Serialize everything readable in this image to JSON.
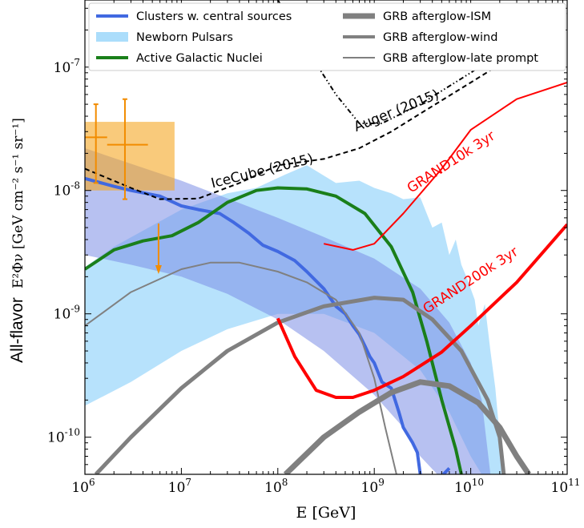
{
  "chart_data": {
    "type": "line",
    "log_x": true,
    "log_y": true,
    "xlim": [
      1000000.0,
      100000000000.0
    ],
    "ylim": [
      5e-11,
      3.5e-07
    ],
    "xlabel": "E [GeV]",
    "ylabel_prefix": "All-flavor",
    "ylabel_math": "E²Φν [GeV cm⁻² s⁻¹ sr⁻¹]",
    "x_ticks": [
      {
        "value": 1000000.0,
        "base": "10",
        "exp": "6"
      },
      {
        "value": 10000000.0,
        "base": "10",
        "exp": "7"
      },
      {
        "value": 100000000.0,
        "base": "10",
        "exp": "8"
      },
      {
        "value": 1000000000.0,
        "base": "10",
        "exp": "9"
      },
      {
        "value": 10000000000.0,
        "base": "10",
        "exp": "10"
      },
      {
        "value": 100000000000.0,
        "base": "10",
        "exp": "11"
      }
    ],
    "y_ticks": [
      {
        "value": 1e-10,
        "base": "10",
        "exp": "-10"
      },
      {
        "value": 1e-09,
        "base": "10",
        "exp": "-9"
      },
      {
        "value": 1e-08,
        "base": "10",
        "exp": "-8"
      },
      {
        "value": 1e-07,
        "base": "10",
        "exp": "-7"
      }
    ],
    "legend": {
      "placement": "top",
      "entries": [
        {
          "label": "Clusters w. central sources",
          "color": "#4169e1",
          "style": "line-thick"
        },
        {
          "label": "Newborn Pulsars",
          "color": "#87cefa",
          "style": "band"
        },
        {
          "label": "Active Galactic Nuclei",
          "color": "#1a7f1a",
          "style": "line-thick"
        },
        {
          "label": "GRB afterglow-ISM",
          "color": "#808080",
          "style": "line-xthick"
        },
        {
          "label": "GRB afterglow-wind",
          "color": "#808080",
          "style": "line-thick"
        },
        {
          "label": "GRB afterglow-late prompt",
          "color": "#808080",
          "style": "line-thin"
        }
      ]
    },
    "bands": [
      {
        "name": "Newborn Pulsars",
        "color": "#87cefa",
        "opacity": 0.6,
        "upper": [
          [
            1000000.0,
            2.4e-09
          ],
          [
            2000000.0,
            3.5e-09
          ],
          [
            5000000.0,
            5.2e-09
          ],
          [
            10000000.0,
            7e-09
          ],
          [
            30000000.0,
            9.5e-09
          ],
          [
            60000000.0,
            1.05e-08
          ],
          [
            120000000.0,
            1.35e-08
          ],
          [
            200000000.0,
            1.6e-08
          ],
          [
            400000000.0,
            1.15e-08
          ],
          [
            700000000.0,
            1.2e-08
          ],
          [
            1000000000.0,
            1.05e-08
          ],
          [
            1500000000.0,
            9.5e-09
          ],
          [
            2000000000.0,
            8.5e-09
          ],
          [
            3000000000.0,
            8.8e-09
          ],
          [
            4000000000.0,
            5e-09
          ],
          [
            5000000000.0,
            5.5e-09
          ],
          [
            6000000000.0,
            3e-09
          ],
          [
            7000000000.0,
            4e-09
          ],
          [
            8000000000.0,
            2.5e-09
          ],
          [
            9000000000.0,
            2e-09
          ],
          [
            11000000000.0,
            1.3e-09
          ],
          [
            12000000000.0,
            8e-10
          ],
          [
            14000000000.0,
            1.2e-09
          ],
          [
            16000000000.0,
            5e-10
          ],
          [
            18000000000.0,
            2.5e-10
          ],
          [
            20000000000.0,
            1e-10
          ],
          [
            22000000000.0,
            5e-11
          ]
        ],
        "lower": [
          [
            1000000.0,
            1.8e-10
          ],
          [
            3000000.0,
            2.8e-10
          ],
          [
            10000000.0,
            5e-10
          ],
          [
            30000000.0,
            7.5e-10
          ],
          [
            100000000.0,
            1e-09
          ],
          [
            300000000.0,
            1e-09
          ],
          [
            1000000000.0,
            7e-10
          ],
          [
            3000000000.0,
            3.5e-10
          ],
          [
            6000000000.0,
            1.6e-10
          ],
          [
            10000000000.0,
            7e-11
          ],
          [
            13000000000.0,
            5e-11
          ]
        ]
      },
      {
        "name": "Clusters band",
        "color": "#7b8ee6",
        "opacity": 0.55,
        "upper": [
          [
            1000000.0,
            2.2e-08
          ],
          [
            10000000.0,
            1.2e-08
          ],
          [
            100000000.0,
            6e-09
          ],
          [
            300000000.0,
            4.2e-09
          ],
          [
            1000000000.0,
            2.8e-09
          ],
          [
            3000000000.0,
            1.6e-09
          ],
          [
            6000000000.0,
            8.5e-10
          ],
          [
            10000000000.0,
            4e-10
          ],
          [
            13000000000.0,
            2e-10
          ],
          [
            16000000000.0,
            5e-11
          ]
        ],
        "lower": [
          [
            1000000.0,
            3e-09
          ],
          [
            3000000.0,
            2.5e-09
          ],
          [
            10000000.0,
            2e-09
          ],
          [
            30000000.0,
            1.45e-09
          ],
          [
            100000000.0,
            9e-10
          ],
          [
            300000000.0,
            5e-10
          ],
          [
            1000000000.0,
            2.2e-10
          ],
          [
            2000000000.0,
            1.2e-10
          ],
          [
            3000000000.0,
            7e-11
          ],
          [
            4500000000.0,
            5e-11
          ]
        ]
      }
    ],
    "error_box": {
      "name": "IceCube box",
      "color": "#f5a623",
      "opacity": 0.6,
      "x": [
        1000000.0,
        8500000.0
      ],
      "y": [
        1e-08,
        3.6e-08
      ]
    },
    "series": [
      {
        "name": "Clusters w. central sources",
        "color": "#4169e1",
        "width": 4,
        "points": [
          [
            1000000.0,
            1.25e-08
          ],
          [
            2000000.0,
            1.08e-08
          ],
          [
            3000000.0,
            1e-08
          ],
          [
            6000000.0,
            9e-09
          ],
          [
            10000000.0,
            7.5e-09
          ],
          [
            15000000.0,
            7e-09
          ],
          [
            25000000.0,
            6.5e-09
          ],
          [
            35000000.0,
            5.5e-09
          ],
          [
            50000000.0,
            4.5e-09
          ],
          [
            70000000.0,
            3.6e-09
          ],
          [
            100000000.0,
            3.2e-09
          ],
          [
            150000000.0,
            2.7e-09
          ],
          [
            200000000.0,
            2.2e-09
          ],
          [
            300000000.0,
            1.6e-09
          ],
          [
            400000000.0,
            1.15e-09
          ],
          [
            500000000.0,
            1e-09
          ],
          [
            600000000.0,
            8e-10
          ],
          [
            700000000.0,
            6.8e-10
          ],
          [
            800000000.0,
            5.5e-10
          ],
          [
            900000000.0,
            4.5e-10
          ],
          [
            1000000000.0,
            4e-10
          ],
          [
            1200000000.0,
            2.8e-10
          ],
          [
            1500000000.0,
            2.5e-10
          ],
          [
            1800000000.0,
            1.6e-10
          ],
          [
            2000000000.0,
            1.2e-10
          ],
          [
            2500000000.0,
            9e-11
          ],
          [
            2800000000.0,
            7.5e-11
          ],
          [
            3000000000.0,
            5e-11
          ]
        ]
      },
      {
        "name": "Blue tail",
        "color": "#4169e1",
        "width": 4,
        "points": [
          [
            5200000000.0,
            5e-11
          ],
          [
            6000000000.0,
            5.6e-11
          ]
        ]
      },
      {
        "name": "Active Galactic Nuclei",
        "color": "#1a7f1a",
        "width": 4,
        "points": [
          [
            1000000.0,
            2.3e-09
          ],
          [
            2000000.0,
            3.3e-09
          ],
          [
            4000000.0,
            3.9e-09
          ],
          [
            8000000.0,
            4.3e-09
          ],
          [
            15000000.0,
            5.5e-09
          ],
          [
            30000000.0,
            8e-09
          ],
          [
            60000000.0,
            1e-08
          ],
          [
            100000000.0,
            1.05e-08
          ],
          [
            200000000.0,
            1.03e-08
          ],
          [
            400000000.0,
            9e-09
          ],
          [
            800000000.0,
            6.5e-09
          ],
          [
            1500000000.0,
            3.5e-09
          ],
          [
            2500000000.0,
            1.5e-09
          ],
          [
            3500000000.0,
            6e-10
          ],
          [
            5000000000.0,
            2e-10
          ],
          [
            7000000000.0,
            8e-11
          ],
          [
            8000000000.0,
            5e-11
          ]
        ]
      },
      {
        "name": "GRB afterglow-ISM",
        "color": "#808080",
        "width": 7,
        "points": [
          [
            120000000.0,
            5e-11
          ],
          [
            300000000.0,
            1e-10
          ],
          [
            700000000.0,
            1.6e-10
          ],
          [
            1500000000.0,
            2.3e-10
          ],
          [
            3000000000.0,
            2.8e-10
          ],
          [
            6000000000.0,
            2.6e-10
          ],
          [
            12000000000.0,
            1.9e-10
          ],
          [
            20000000000.0,
            1.2e-10
          ],
          [
            30000000000.0,
            7e-11
          ],
          [
            40000000000.0,
            5e-11
          ]
        ]
      },
      {
        "name": "GRB afterglow-wind",
        "color": "#808080",
        "width": 5,
        "points": [
          [
            1300000.0,
            5e-11
          ],
          [
            3000000.0,
            1e-10
          ],
          [
            10000000.0,
            2.5e-10
          ],
          [
            30000000.0,
            5e-10
          ],
          [
            100000000.0,
            8.5e-10
          ],
          [
            300000000.0,
            1.15e-09
          ],
          [
            1000000000.0,
            1.35e-09
          ],
          [
            2000000000.0,
            1.3e-09
          ],
          [
            4000000000.0,
            9e-10
          ],
          [
            8000000000.0,
            5e-10
          ],
          [
            15000000000.0,
            2e-10
          ],
          [
            20000000000.0,
            1e-10
          ],
          [
            22000000000.0,
            5e-11
          ]
        ]
      },
      {
        "name": "GRB afterglow-late prompt",
        "color": "#808080",
        "width": 2,
        "points": [
          [
            1000000.0,
            8e-10
          ],
          [
            3000000.0,
            1.5e-09
          ],
          [
            10000000.0,
            2.3e-09
          ],
          [
            20000000.0,
            2.6e-09
          ],
          [
            40000000.0,
            2.6e-09
          ],
          [
            100000000.0,
            2.2e-09
          ],
          [
            200000000.0,
            1.8e-09
          ],
          [
            400000000.0,
            1.3e-09
          ],
          [
            700000000.0,
            7e-10
          ],
          [
            1000000000.0,
            3e-10
          ],
          [
            1300000000.0,
            1.2e-10
          ],
          [
            1700000000.0,
            5e-11
          ]
        ]
      },
      {
        "name": "GRAND10k 3yr",
        "color": "#ff0000",
        "width": 2,
        "points": [
          [
            300000000.0,
            3.7e-09
          ],
          [
            600000000.0,
            3.3e-09
          ],
          [
            1000000000.0,
            3.7e-09
          ],
          [
            2000000000.0,
            6.5e-09
          ],
          [
            5000000000.0,
            1.5e-08
          ],
          [
            10000000000.0,
            3.1e-08
          ],
          [
            30000000000.0,
            5.5e-08
          ],
          [
            100000000000.0,
            7.5e-08
          ]
        ]
      },
      {
        "name": "GRAND200k 3yr",
        "color": "#ff0000",
        "width": 4,
        "points": [
          [
            100000000.0,
            9.2e-10
          ],
          [
            150000000.0,
            4.5e-10
          ],
          [
            250000000.0,
            2.4e-10
          ],
          [
            400000000.0,
            2.1e-10
          ],
          [
            600000000.0,
            2.1e-10
          ],
          [
            1000000000.0,
            2.4e-10
          ],
          [
            2000000000.0,
            3.1e-10
          ],
          [
            5000000000.0,
            4.9e-10
          ],
          [
            10000000000.0,
            8e-10
          ],
          [
            30000000000.0,
            1.8e-09
          ],
          [
            100000000000.0,
            5.3e-09
          ]
        ]
      },
      {
        "name": "IceCube (2015)",
        "color": "#000000",
        "width": 2,
        "dash": "6 4",
        "points": [
          [
            1000000.0,
            1.5e-08
          ],
          [
            3000000.0,
            1.05e-08
          ],
          [
            6000000.0,
            8.5e-09
          ],
          [
            15000000.0,
            8.6e-09
          ],
          [
            40000000.0,
            1.15e-08
          ],
          [
            100000000.0,
            1.6e-08
          ],
          [
            300000000.0,
            1.8e-08
          ],
          [
            700000000.0,
            2.2e-08
          ],
          [
            1500000000.0,
            3e-08
          ],
          [
            3000000000.0,
            4.2e-08
          ],
          [
            10000000000.0,
            7.5e-08
          ],
          [
            20000000000.0,
            1.05e-07
          ],
          [
            50000000000.0,
            1.7e-07
          ],
          [
            100000000000.0,
            2.7e-07
          ]
        ]
      },
      {
        "name": "Auger (2015)",
        "color": "#000000",
        "width": 2,
        "dash": "6 3 1.5 3 1.5 3",
        "points": [
          [
            100000000.0,
            3.5e-07
          ],
          [
            200000000.0,
            1.4e-07
          ],
          [
            400000000.0,
            6e-08
          ],
          [
            700000000.0,
            3.5e-08
          ],
          [
            1200000000.0,
            3.5e-08
          ],
          [
            3000000000.0,
            5e-08
          ],
          [
            10000000000.0,
            9e-08
          ],
          [
            30000000000.0,
            1.6e-07
          ],
          [
            100000000000.0,
            3e-07
          ]
        ]
      }
    ],
    "errorbars": [
      {
        "x": 1300000.0,
        "y": 2.7e-08,
        "xerr": [
          1000000.0,
          1700000.0
        ],
        "yerr": [
          1.15e-08,
          5e-08
        ]
      },
      {
        "x": 2600000.0,
        "y": 2.35e-08,
        "xerr": [
          1700000.0,
          4500000.0
        ],
        "yerr": [
          8.5e-09,
          5.5e-08
        ]
      },
      {
        "x": 5800000.0,
        "y": 5.4e-09,
        "upper_limit": true,
        "arrow_to": 2.2e-09
      }
    ],
    "annotations": [
      {
        "text": "IceCube (2015)",
        "x": 21000000.0,
        "y": 1.05e-08,
        "angle": -14,
        "color": "#000000"
      },
      {
        "text": "Auger (2015)",
        "x": 650000000.0,
        "y": 3e-08,
        "angle": -22,
        "color": "#000000"
      },
      {
        "text": "GRAND10k 3yr",
        "x": 2400000000.0,
        "y": 9.5e-09,
        "angle": -33,
        "color": "#ff0000"
      },
      {
        "text": "GRAND200k 3yr",
        "x": 3500000000.0,
        "y": 1e-09,
        "angle": -33,
        "color": "#ff0000"
      }
    ]
  }
}
